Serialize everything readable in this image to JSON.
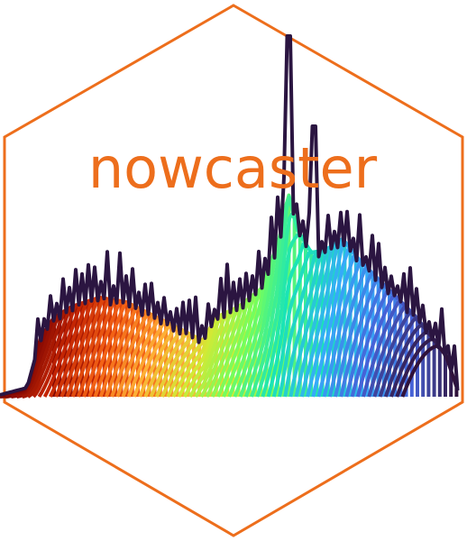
{
  "logo": {
    "wordmark": "nowcaster",
    "colors": {
      "hex_border": "#ED6E1C",
      "wordmark": "#ED6E1C",
      "observed_series": "#2B1541",
      "palette": [
        "#7A0403",
        "#C42503",
        "#F36215",
        "#FDAF35",
        "#D2E935",
        "#74FE5D",
        "#1AE4B6",
        "#36AAF9",
        "#4662D7",
        "#30123B"
      ]
    },
    "icons": [
      "hexagon-badge-icon",
      "nowcast-curves-icon"
    ]
  }
}
